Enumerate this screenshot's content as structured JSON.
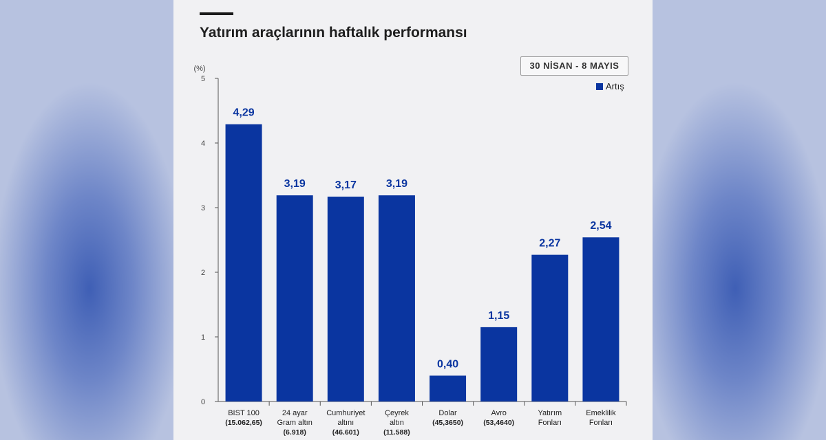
{
  "chart_data": {
    "type": "bar",
    "title": "Yatırım araçlarının haftalık performansı",
    "period": "30 NİSAN - 8 MAYIS",
    "ylabel": "(%)",
    "ylim": [
      0,
      5
    ],
    "yticks": [
      "0",
      "1",
      "2",
      "3",
      "4",
      "5"
    ],
    "legend": {
      "label": "Artış",
      "position": "top-right"
    },
    "categories": [
      {
        "lines": [
          "BIST 100"
        ],
        "sub": "(15.062,65)"
      },
      {
        "lines": [
          "24 ayar",
          "Gram altın"
        ],
        "sub": "(6.918)"
      },
      {
        "lines": [
          "Cumhuriyet",
          "altını"
        ],
        "sub": "(46.601)"
      },
      {
        "lines": [
          "Çeyrek",
          "altın"
        ],
        "sub": "(11.588)"
      },
      {
        "lines": [
          "Dolar"
        ],
        "sub": "(45,3650)"
      },
      {
        "lines": [
          "Avro"
        ],
        "sub": "(53,4640)"
      },
      {
        "lines": [
          "Yatırım",
          "Fonları"
        ],
        "sub": ""
      },
      {
        "lines": [
          "Emeklilik",
          "Fonları"
        ],
        "sub": ""
      }
    ],
    "values": [
      4.29,
      3.19,
      3.17,
      3.19,
      0.4,
      1.15,
      2.27,
      2.54
    ],
    "value_labels": [
      "4,29",
      "3,19",
      "3,17",
      "3,19",
      "0,40",
      "1,15",
      "2,27",
      "2,54"
    ],
    "colors": {
      "bar": "#0a35a0",
      "value": "#0a35a0",
      "axis": "#555555"
    }
  }
}
